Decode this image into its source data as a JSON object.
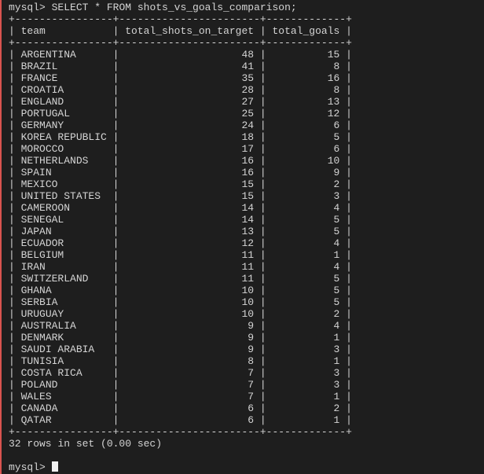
{
  "prompt": {
    "text": "mysql>",
    "command": "SELECT * FROM shots_vs_goals_comparison;"
  },
  "table": {
    "columns": [
      "team",
      "total_shots_on_target",
      "total_goals"
    ],
    "rows": [
      [
        "ARGENTINA",
        48,
        15
      ],
      [
        "BRAZIL",
        41,
        8
      ],
      [
        "FRANCE",
        35,
        16
      ],
      [
        "CROATIA",
        28,
        8
      ],
      [
        "ENGLAND",
        27,
        13
      ],
      [
        "PORTUGAL",
        25,
        12
      ],
      [
        "GERMANY",
        24,
        6
      ],
      [
        "KOREA REPUBLIC",
        18,
        5
      ],
      [
        "MOROCCO",
        17,
        6
      ],
      [
        "NETHERLANDS",
        16,
        10
      ],
      [
        "SPAIN",
        16,
        9
      ],
      [
        "MEXICO",
        15,
        2
      ],
      [
        "UNITED STATES",
        15,
        3
      ],
      [
        "CAMEROON",
        14,
        4
      ],
      [
        "SENEGAL",
        14,
        5
      ],
      [
        "JAPAN",
        13,
        5
      ],
      [
        "ECUADOR",
        12,
        4
      ],
      [
        "BELGIUM",
        11,
        1
      ],
      [
        "IRAN",
        11,
        4
      ],
      [
        "SWITZERLAND",
        11,
        5
      ],
      [
        "GHANA",
        10,
        5
      ],
      [
        "SERBIA",
        10,
        5
      ],
      [
        "URUGUAY",
        10,
        2
      ],
      [
        "AUSTRALIA",
        9,
        4
      ],
      [
        "DENMARK",
        9,
        1
      ],
      [
        "SAUDI ARABIA",
        9,
        3
      ],
      [
        "TUNISIA",
        8,
        1
      ],
      [
        "COSTA RICA",
        7,
        3
      ],
      [
        "POLAND",
        7,
        3
      ],
      [
        "WALES",
        7,
        1
      ],
      [
        "CANADA",
        6,
        2
      ],
      [
        "QATAR",
        6,
        1
      ]
    ]
  },
  "status": "32 rows in set (0.00 sec)",
  "final_prompt": "mysql>"
}
